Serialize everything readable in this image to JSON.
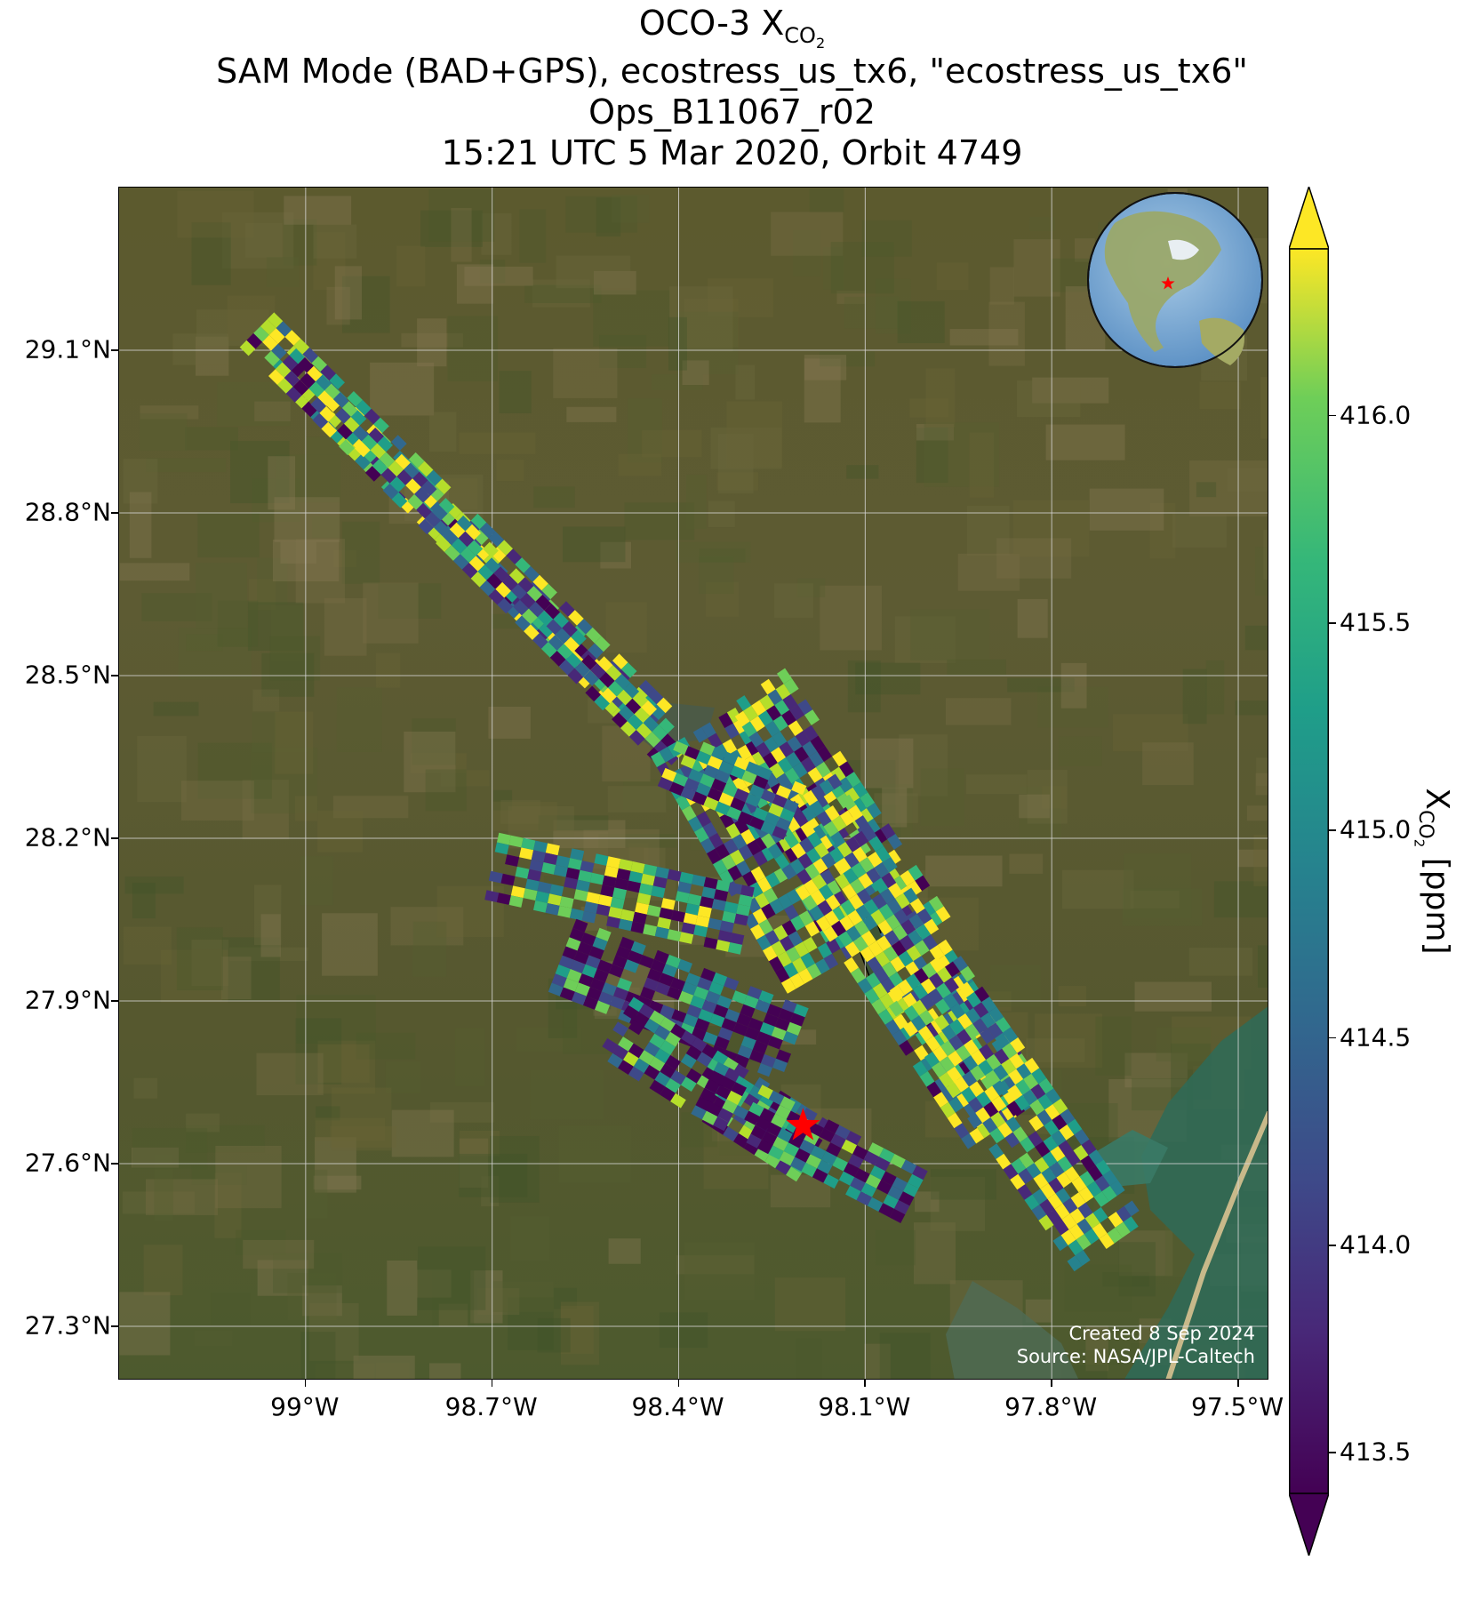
{
  "title": {
    "line1_main": "OCO-3 X",
    "line1_sub": "CO",
    "line1_subsub": "2",
    "line2": "SAM Mode (BAD+GPS), ecostress_us_tx6, \"ecostress_us_tx6\"",
    "line3": "Ops_B11067_r02",
    "line4": "15:21 UTC 5 Mar 2020, Orbit 4749"
  },
  "map": {
    "lat_range": [
      27.2,
      29.4
    ],
    "lon_range": [
      -99.3,
      -97.45
    ],
    "lat_ticks": [
      "29.1°N",
      "28.8°N",
      "28.5°N",
      "28.2°N",
      "27.9°N",
      "27.6°N",
      "27.3°N"
    ],
    "lat_values": [
      29.1,
      28.8,
      28.5,
      28.2,
      27.9,
      27.6,
      27.3
    ],
    "lon_ticks": [
      "99°W",
      "98.7°W",
      "98.4°W",
      "98.1°W",
      "97.8°W",
      "97.5°W"
    ],
    "lon_values": [
      -99.0,
      -98.7,
      -98.4,
      -98.1,
      -97.8,
      -97.5
    ],
    "grid": true,
    "basemap": "satellite-imagery",
    "target_marker": {
      "icon": "red-star-icon",
      "lat": 27.67,
      "lon": -98.2,
      "color": "#ff0000"
    },
    "inset_globe": {
      "icon": "globe-icon",
      "placement": "top-right"
    },
    "credit_line1": "Created 8 Sep 2024",
    "credit_line2": "Source: NASA/JPL-Caltech"
  },
  "colorbar": {
    "colormap": "viridis",
    "range": [
      413.4,
      416.4
    ],
    "extend": "both",
    "ticks": [
      "416.0",
      "415.5",
      "415.0",
      "414.5",
      "414.0",
      "413.5"
    ],
    "tick_values": [
      416.0,
      415.5,
      415.0,
      414.5,
      414.0,
      413.5
    ],
    "label_main": "X",
    "label_sub": "CO",
    "label_subsub": "2",
    "label_unit": " [ppm]"
  }
}
